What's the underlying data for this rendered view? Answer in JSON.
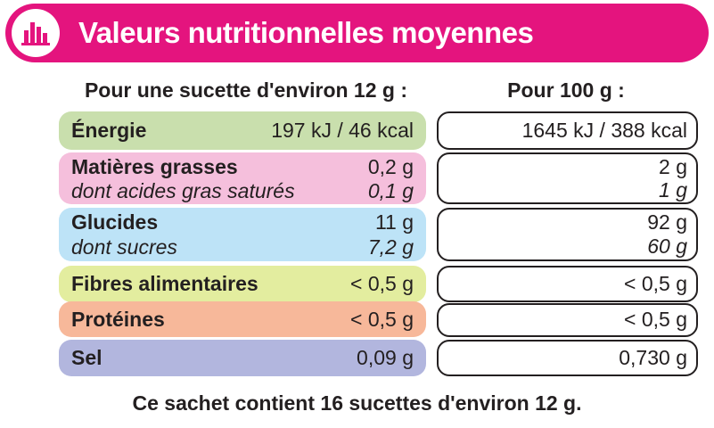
{
  "header": {
    "title": "Valeurs nutritionnelles moyennes",
    "icon": "bar-chart-icon",
    "color": "#e4147e"
  },
  "columns": {
    "per_portion": "Pour une sucette d'environ 12 g :",
    "per_100g": "Pour 100 g :"
  },
  "rows": [
    {
      "label": "Énergie",
      "portion": "197 kJ / 46 kcal",
      "per100": "1645 kJ / 388 kcal",
      "color": "#c9dfad"
    },
    {
      "label": "Matières grasses",
      "portion": "0,2 g",
      "per100": "2 g",
      "sub_label": "dont acides gras saturés",
      "sub_portion": "0,1 g",
      "sub_per100": "1 g",
      "color": "#f5bfdc"
    },
    {
      "label": "Glucides",
      "portion": "11 g",
      "per100": "92 g",
      "sub_label": "dont sucres",
      "sub_portion": "7,2 g",
      "sub_per100": "60 g",
      "color": "#bde3f7"
    },
    {
      "label": "Fibres alimentaires",
      "portion": "< 0,5 g",
      "per100": "< 0,5 g",
      "color": "#e3ed9f"
    },
    {
      "label": "Protéines",
      "portion": "< 0,5 g",
      "per100": "< 0,5 g",
      "color": "#f7b89a"
    },
    {
      "label": "Sel",
      "portion": "0,09 g",
      "per100": "0,730 g",
      "color": "#b2b6de"
    }
  ],
  "footer": "Ce sachet contient 16 sucettes d'environ 12 g."
}
